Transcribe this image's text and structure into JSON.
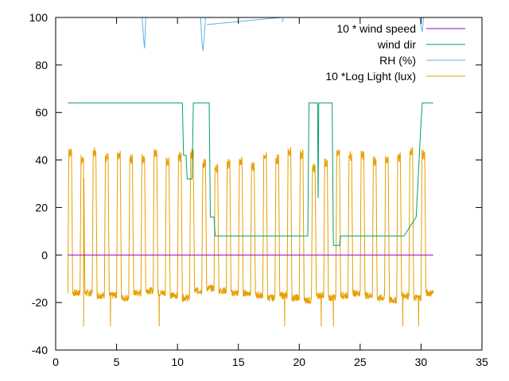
{
  "chart_data": {
    "type": "line",
    "title": "",
    "xlabel": "",
    "ylabel": "",
    "xlim": [
      0,
      35
    ],
    "ylim": [
      -40,
      100
    ],
    "xticks": [
      0,
      5,
      10,
      15,
      20,
      25,
      30,
      35
    ],
    "yticks": [
      -40,
      -20,
      0,
      20,
      40,
      60,
      80,
      100
    ],
    "grid": false,
    "legend_position": "top-right",
    "series": [
      {
        "name": "10 * wind speed",
        "color": "#9400d3",
        "x": [
          1,
          31
        ],
        "y": [
          0,
          0
        ]
      },
      {
        "name": "wind dir",
        "color": "#009e73",
        "x": [
          1,
          10.4,
          10.5,
          10.7,
          10.8,
          11.2,
          11.3,
          12.6,
          12.7,
          13.0,
          13.1,
          20.7,
          20.8,
          21.5,
          21.55,
          21.6,
          21.7,
          22.7,
          22.8,
          23.3,
          23.4,
          28.6,
          29.6,
          30.0,
          30.1,
          31
        ],
        "y": [
          64,
          64,
          42,
          42,
          32,
          32,
          64,
          64,
          16,
          16,
          8,
          8,
          64,
          64,
          24,
          64,
          64,
          64,
          4,
          4,
          8,
          8,
          16,
          56,
          64,
          64
        ]
      },
      {
        "name": "RH (%)",
        "color": "#56b4e9",
        "x": [
          7.1,
          7.2,
          7.3,
          7.4,
          11.9,
          12.0,
          12.1,
          12.2,
          12.3,
          12.4,
          18.5,
          18.6,
          18.7,
          29.9,
          30.0,
          30.1,
          30.2
        ],
        "y": [
          100,
          92,
          87,
          100,
          100,
          90,
          86,
          92,
          100,
          97,
          100,
          98,
          100,
          100,
          96,
          94,
          100
        ]
      },
      {
        "name": "10 *Log Light (lux)",
        "color": "#e69f00",
        "x": [
          1,
          31
        ],
        "daily_max": [
          45,
          42,
          45,
          43,
          44,
          42,
          42,
          45,
          41,
          43,
          44,
          40,
          38,
          40,
          41,
          39,
          43,
          42,
          45,
          44,
          38,
          40,
          45,
          43,
          44,
          41,
          42,
          43,
          45,
          44
        ],
        "daily_min": [
          -16,
          -16,
          -17,
          -17,
          -18,
          -16,
          -15,
          -16,
          -17,
          -18,
          -15,
          -14,
          -15,
          -16,
          -16,
          -17,
          -18,
          -17,
          -18,
          -19,
          -17,
          -18,
          -17,
          -16,
          -17,
          -18,
          -19,
          -17,
          -18,
          -16
        ],
        "spikes": [
          [
            2.3,
            -30
          ],
          [
            4.5,
            -30
          ],
          [
            8.5,
            -30
          ],
          [
            18.8,
            -30
          ],
          [
            21.8,
            -30
          ],
          [
            22.8,
            -30
          ],
          [
            28.5,
            -30
          ],
          [
            29.8,
            -30
          ]
        ]
      }
    ]
  }
}
